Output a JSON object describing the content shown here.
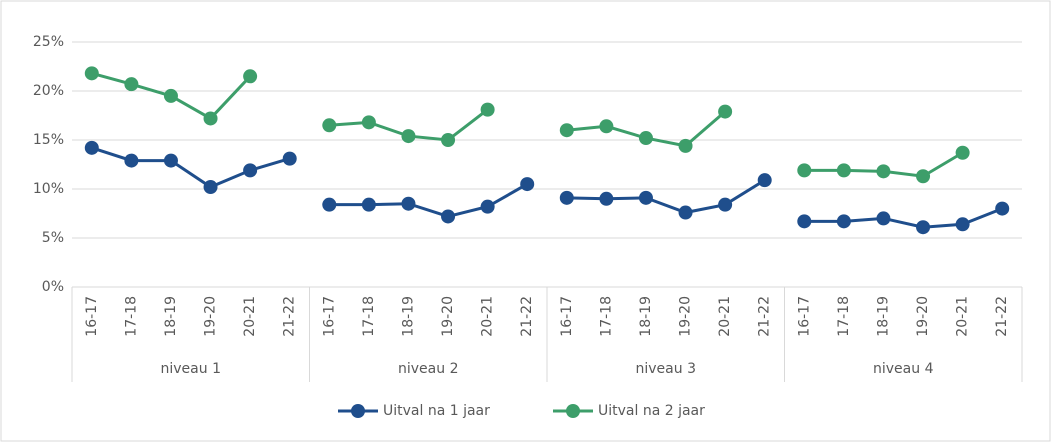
{
  "chart_data": {
    "type": "line",
    "groups": [
      "niveau 1",
      "niveau 2",
      "niveau 3",
      "niveau 4"
    ],
    "categories": [
      [
        "16-17",
        "17-18",
        "18-19",
        "19-20",
        "20-21",
        "21-22"
      ],
      [
        "16-17",
        "17-18",
        "18-19",
        "19-20",
        "20-21",
        "21-22"
      ],
      [
        "16-17",
        "17-18",
        "18-19",
        "19-20",
        "20-21",
        "21-22"
      ],
      [
        "16-17",
        "17-18",
        "18-19",
        "19-20",
        "20-21",
        "21-22"
      ]
    ],
    "series": [
      {
        "name": "Uitval na 1 jaar",
        "color": "#1f4e8c",
        "values": [
          [
            14.2,
            12.9,
            12.9,
            10.2,
            11.9,
            13.1
          ],
          [
            8.4,
            8.4,
            8.5,
            7.2,
            8.2,
            10.5
          ],
          [
            9.1,
            9.0,
            9.1,
            7.6,
            8.4,
            10.9
          ],
          [
            6.7,
            6.7,
            7.0,
            6.1,
            6.4,
            8.0
          ]
        ]
      },
      {
        "name": "Uitval na 2 jaar",
        "color": "#3d9e6a",
        "values": [
          [
            21.8,
            20.7,
            19.5,
            17.2,
            21.5,
            null
          ],
          [
            16.5,
            16.8,
            15.4,
            15.0,
            18.1,
            null
          ],
          [
            16.0,
            16.4,
            15.2,
            14.4,
            17.9,
            null
          ],
          [
            11.9,
            11.9,
            11.8,
            11.3,
            13.7,
            null
          ]
        ]
      }
    ],
    "ylim": [
      0,
      25
    ],
    "yticks": [
      {
        "value": 0,
        "label": "0%"
      },
      {
        "value": 5,
        "label": "5%"
      },
      {
        "value": 10,
        "label": "10%"
      },
      {
        "value": 15,
        "label": "15%"
      },
      {
        "value": 20,
        "label": "20%"
      },
      {
        "value": 25,
        "label": "25%"
      }
    ],
    "grid": true,
    "legend": "bottom"
  }
}
